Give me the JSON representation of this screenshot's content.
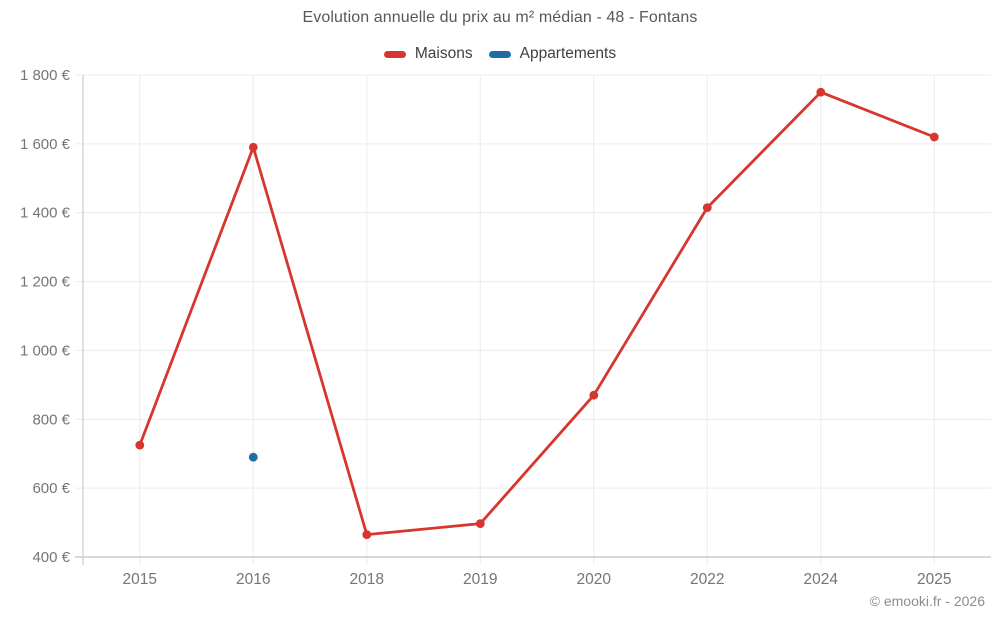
{
  "chart_data": {
    "type": "line",
    "title": "Evolution annuelle du prix au m² médian - 48 - Fontans",
    "categories": [
      "2015",
      "2016",
      "2018",
      "2019",
      "2020",
      "2022",
      "2024",
      "2025"
    ],
    "series": [
      {
        "name": "Maisons",
        "color": "#d7362f",
        "values": [
          725,
          1590,
          465,
          497,
          870,
          1415,
          1750,
          1620
        ]
      },
      {
        "name": "Appartements",
        "color": "#1d6fa3",
        "values": [
          null,
          690,
          null,
          null,
          null,
          null,
          null,
          null
        ]
      }
    ],
    "xlabel": "",
    "ylabel": "",
    "ylim": [
      400,
      1800
    ],
    "ytick_step": 200,
    "ytick_labels": [
      "400 €",
      "600 €",
      "800 €",
      "1 000 €",
      "1 200 €",
      "1 400 €",
      "1 600 €",
      "1 800 €"
    ],
    "grid": true,
    "legend_position": "top"
  },
  "legend": [
    {
      "label": "Maisons",
      "color": "#d7362f"
    },
    {
      "label": "Appartements",
      "color": "#1d6fa3"
    }
  ],
  "footer": "© emooki.fr - 2026",
  "colors": {
    "grid": "#ececec",
    "axis": "#cccccc",
    "tick_text": "#757575",
    "title_text": "#58585b",
    "legend_text": "#3f3f3f",
    "footer_text": "#8c8c8c",
    "background": "#ffffff"
  }
}
